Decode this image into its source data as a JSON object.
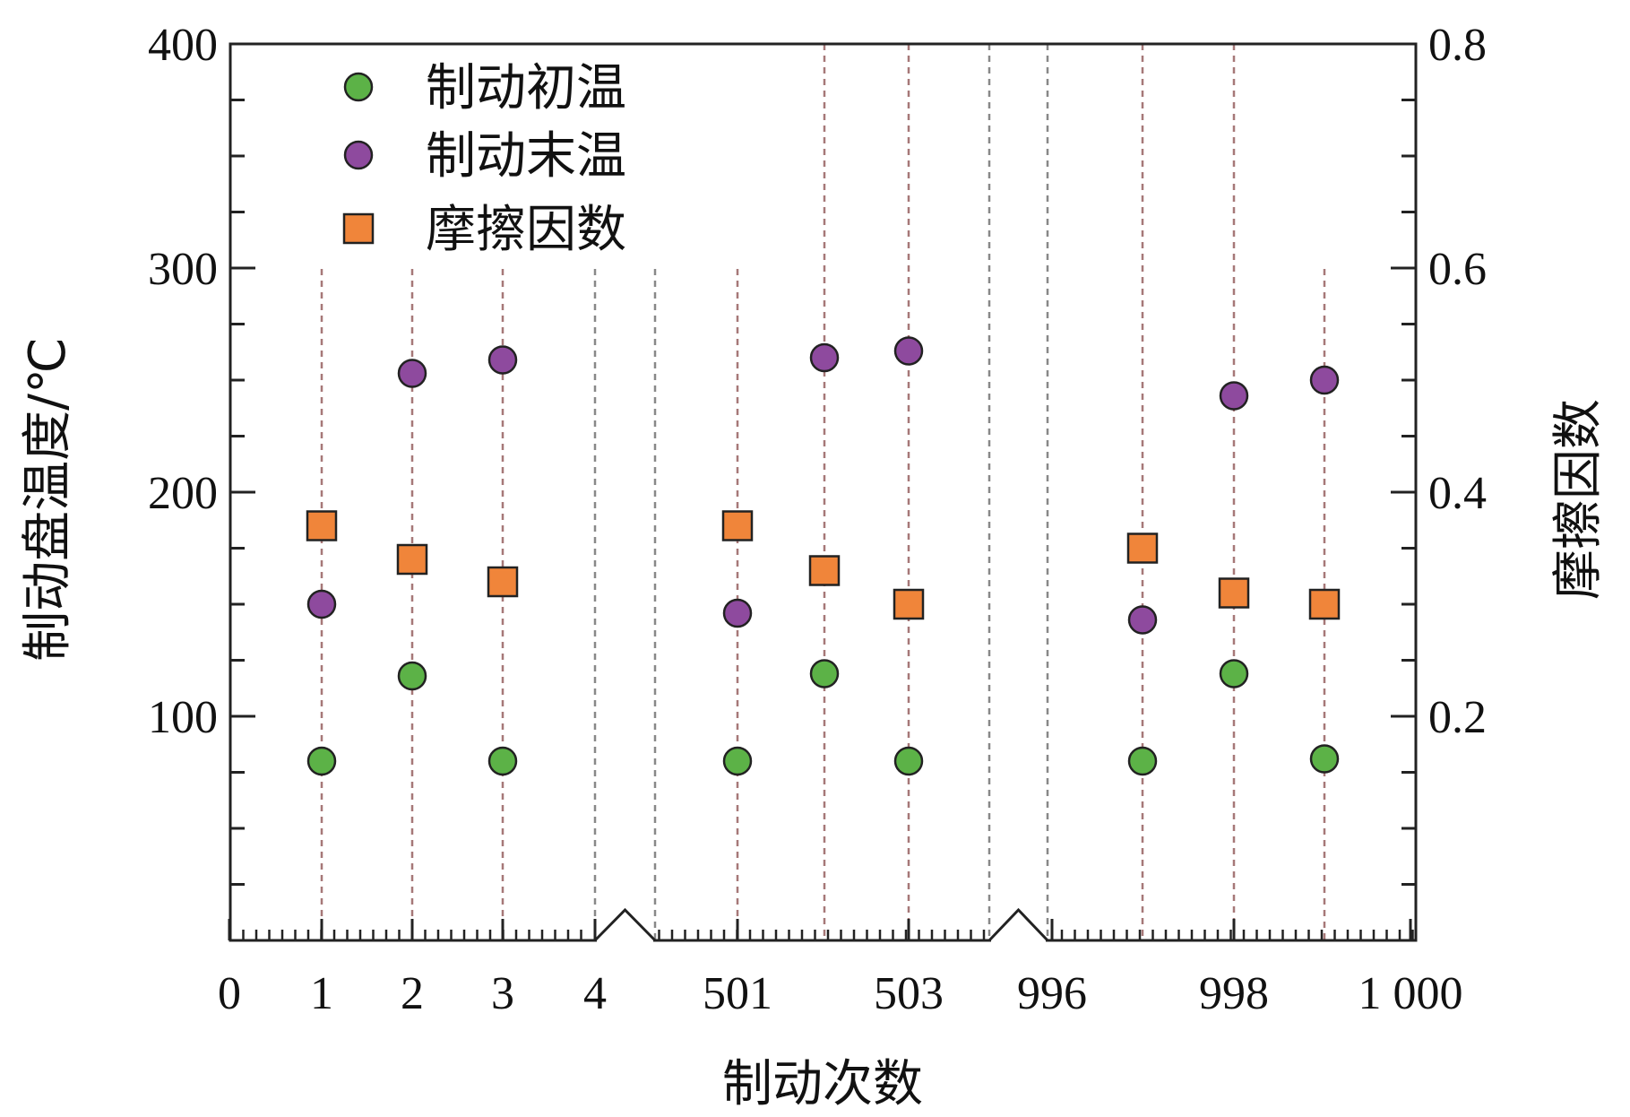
{
  "chart_data": {
    "type": "scatter",
    "x_tick_labels": [
      "0",
      "1",
      "2",
      "3",
      "4",
      "501",
      "503",
      "996",
      "998",
      "1 000"
    ],
    "xlabel": "制动次数",
    "ylabel_left": "制动盘温度/℃",
    "ylabel_right": "摩擦因数",
    "ylim_left": [
      0,
      400
    ],
    "ylim_right": [
      0,
      0.8
    ],
    "yticks_left": [
      "100",
      "200",
      "300",
      "400"
    ],
    "yticks_right": [
      "0.2",
      "0.4",
      "0.6",
      "0.8"
    ],
    "axis_breaks": [
      "4–501",
      "503–996"
    ],
    "grid": "vertical dashed lines at each braking count",
    "legend_position": "top-left",
    "categories": [
      "1",
      "2",
      "3",
      "501",
      "502",
      "503",
      "997",
      "998",
      "999"
    ],
    "series": [
      {
        "name": "制动初温",
        "axis": "left",
        "marker": "circle",
        "color": "#5cb247",
        "values": [
          80,
          118,
          80,
          80,
          119,
          80,
          80,
          119,
          81
        ]
      },
      {
        "name": "制动末温",
        "axis": "left",
        "marker": "circle",
        "color": "#8e4a9e",
        "values": [
          150,
          253,
          259,
          146,
          260,
          263,
          143,
          243,
          250
        ]
      },
      {
        "name": "摩擦因数",
        "axis": "right",
        "marker": "square",
        "color": "#f0853a",
        "values": [
          0.37,
          0.34,
          0.32,
          0.37,
          0.33,
          0.3,
          0.35,
          0.31,
          0.3
        ]
      }
    ]
  }
}
